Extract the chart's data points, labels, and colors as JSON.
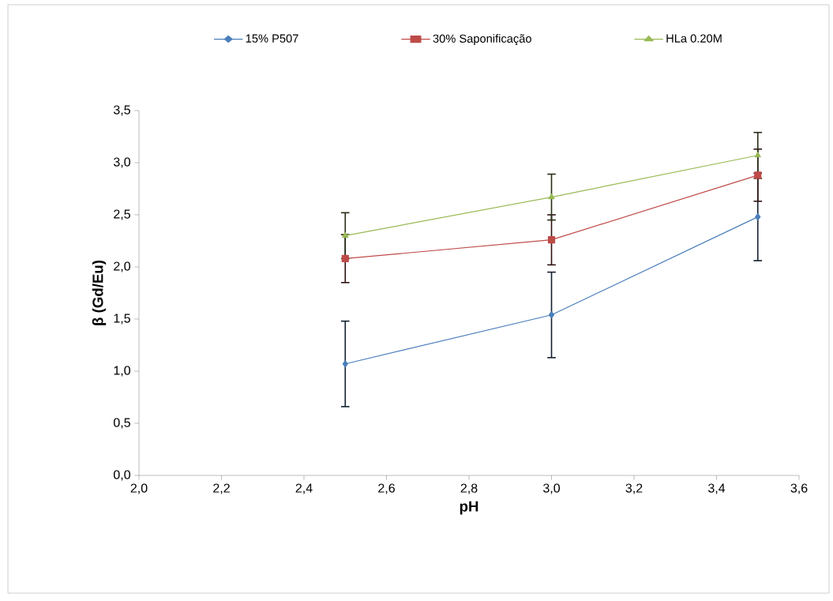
{
  "chart_data": {
    "type": "line",
    "xlabel": "pH",
    "ylabel": "β (Gd/Eu)",
    "x": [
      2.5,
      3.0,
      3.5
    ],
    "series": [
      {
        "name": "15% P507",
        "color": "#4a7ebb",
        "marker": "diamond",
        "values": [
          1.07,
          1.54,
          2.48
        ],
        "errors": [
          0.41,
          0.41,
          0.42
        ]
      },
      {
        "name": "30% Saponificação",
        "color": "#be4b48",
        "marker": "square",
        "values": [
          2.08,
          2.26,
          2.88
        ],
        "errors": [
          0.23,
          0.24,
          0.25
        ]
      },
      {
        "name": "HLa 0.20M",
        "color": "#98b954",
        "marker": "triangle",
        "values": [
          2.3,
          2.67,
          3.07
        ],
        "errors": [
          0.22,
          0.22,
          0.22
        ]
      }
    ],
    "xlim": [
      2.0,
      3.6
    ],
    "xticks": [
      {
        "value": 2.0,
        "label": "2,0"
      },
      {
        "value": 2.2,
        "label": "2,2"
      },
      {
        "value": 2.4,
        "label": "2,4"
      },
      {
        "value": 2.6,
        "label": "2,6"
      },
      {
        "value": 2.8,
        "label": "2,8"
      },
      {
        "value": 3.0,
        "label": "3,0"
      },
      {
        "value": 3.2,
        "label": "3,2"
      },
      {
        "value": 3.4,
        "label": "3,4"
      },
      {
        "value": 3.6,
        "label": "3,6"
      }
    ],
    "ylim": [
      0,
      3.5
    ],
    "yticks": [
      {
        "value": 0,
        "label": "0,0"
      },
      {
        "value": 0.5,
        "label": "0,5"
      },
      {
        "value": 1.0,
        "label": "1,0"
      },
      {
        "value": 1.5,
        "label": "1,5"
      },
      {
        "value": 2.0,
        "label": "2,0"
      },
      {
        "value": 2.5,
        "label": "2,5"
      },
      {
        "value": 3.0,
        "label": "3,0"
      },
      {
        "value": 3.5,
        "label": "3,5"
      }
    ],
    "grid": false,
    "legend": "top",
    "line_style": "solid"
  }
}
